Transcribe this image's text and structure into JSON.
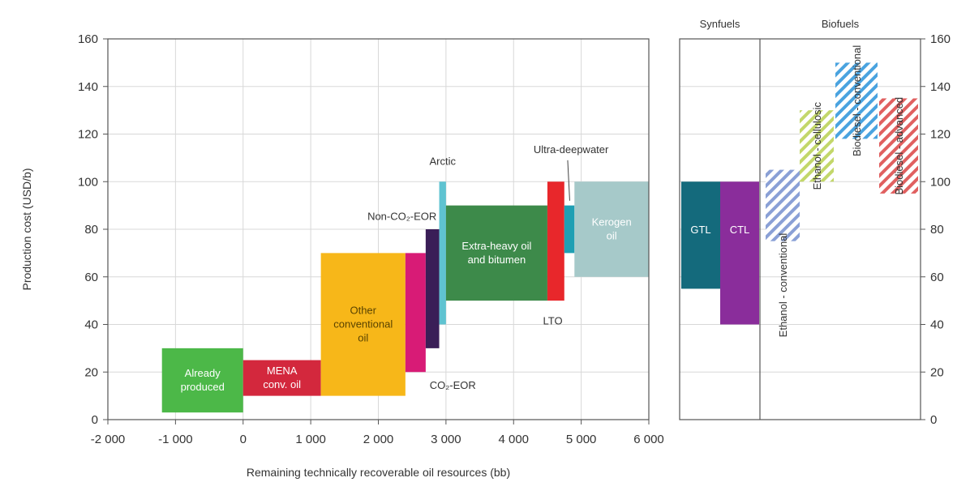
{
  "chart_data": [
    {
      "type": "bar",
      "subtype": "floating-range",
      "xlabel": "Remaining technically recoverable oil resources (bb)",
      "ylabel": "Production cost (USD/b)",
      "xlim": [
        -2000,
        6000
      ],
      "ylim": [
        0,
        160
      ],
      "xticks": [
        "-2 000",
        "-1 000",
        "0",
        "1 000",
        "2 000",
        "3 000",
        "4 000",
        "5 000",
        "6 000"
      ],
      "yticks": [
        "0",
        "20",
        "40",
        "60",
        "80",
        "100",
        "120",
        "140",
        "160"
      ],
      "grid": true,
      "bars": [
        {
          "name": "Already produced",
          "label": "Already\nproduced",
          "x0": -1200,
          "x1": 0,
          "low": 3,
          "high": 30,
          "color": "#4cb848"
        },
        {
          "name": "MENA conv. oil",
          "label": "MENA\nconv. oil",
          "x0": 0,
          "x1": 1150,
          "low": 10,
          "high": 25,
          "color": "#d3283d"
        },
        {
          "name": "Other conventional oil",
          "label": "Other\nconventional\noil",
          "x0": 1150,
          "x1": 2400,
          "low": 10,
          "high": 70,
          "color": "#f7b719"
        },
        {
          "name": "CO2-EOR",
          "label": "",
          "x0": 2400,
          "x1": 2700,
          "low": 20,
          "high": 70,
          "color": "#d81b76"
        },
        {
          "name": "Non-CO2-EOR",
          "label": "",
          "x0": 2700,
          "x1": 2900,
          "low": 30,
          "high": 80,
          "color": "#3a1e57"
        },
        {
          "name": "Arctic",
          "label": "",
          "x0": 2900,
          "x1": 3000,
          "low": 40,
          "high": 100,
          "color": "#5fc3d1"
        },
        {
          "name": "Extra-heavy oil and bitumen",
          "label": "Extra-heavy oil\nand bitumen",
          "x0": 3000,
          "x1": 4500,
          "low": 50,
          "high": 90,
          "color": "#3d8a4a"
        },
        {
          "name": "LTO",
          "label": "",
          "x0": 4500,
          "x1": 4750,
          "low": 50,
          "high": 100,
          "color": "#e8272b"
        },
        {
          "name": "Ultra-deepwater",
          "label": "",
          "x0": 4750,
          "x1": 4900,
          "low": 70,
          "high": 90,
          "color": "#1f9fb3"
        },
        {
          "name": "Kerogen oil",
          "label": "Kerogen\noil",
          "x0": 4900,
          "x1": 6000,
          "low": 60,
          "high": 100,
          "color": "#a6c9c9"
        }
      ],
      "annotations": [
        {
          "text": "Arctic",
          "x": 2950,
          "y": 107
        },
        {
          "text": "Ultra-deepwater",
          "x": 4850,
          "y": 112
        },
        {
          "text": "Non-CO₂-EOR",
          "x": 2350,
          "y": 84
        },
        {
          "text": "CO₂-EOR",
          "x": 3100,
          "y": 13
        },
        {
          "text": "LTO",
          "x": 4580,
          "y": 40
        }
      ]
    },
    {
      "type": "bar",
      "subtype": "floating-range",
      "ylim": [
        0,
        160
      ],
      "yticks": [
        "0",
        "20",
        "40",
        "60",
        "80",
        "100",
        "120",
        "140",
        "160"
      ],
      "groups": [
        "Synfuels",
        "Biofuels"
      ],
      "bars": [
        {
          "name": "GTL",
          "label": "GTL",
          "low": 55,
          "high": 100,
          "color": "#146a7c",
          "hatched": false
        },
        {
          "name": "CTL",
          "label": "CTL",
          "low": 40,
          "high": 100,
          "color": "#8a2d9b",
          "hatched": false
        },
        {
          "name": "Ethanol - conventional",
          "label": "Ethanol - conventional",
          "low": 75,
          "high": 105,
          "color": "#8aa0d6",
          "hatched": true
        },
        {
          "name": "Ethanol - cellulosic",
          "label": "Ethanol - cellulosic",
          "low": 100,
          "high": 130,
          "color": "#c3d76a",
          "hatched": true
        },
        {
          "name": "Biodiesel - conventional",
          "label": "Biodiesel - conventional",
          "low": 118,
          "high": 150,
          "color": "#4aa3df",
          "hatched": true
        },
        {
          "name": "Biodiesel - advanced",
          "label": "Biodiesel - advanced",
          "low": 95,
          "high": 135,
          "color": "#e06060",
          "hatched": true
        }
      ]
    }
  ]
}
